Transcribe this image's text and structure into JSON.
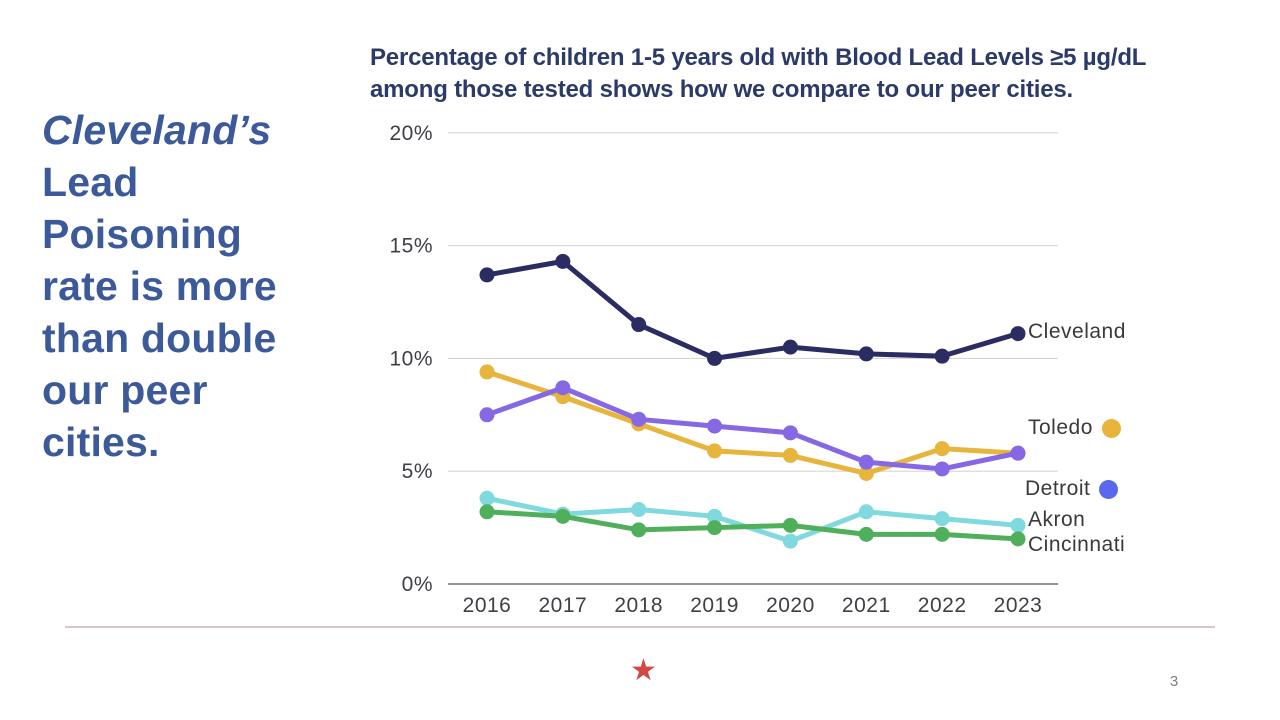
{
  "headline": {
    "emphasis": "Cleveland’s",
    "rest": "Lead Poisoning rate is more than double our peer cities.",
    "lines": [
      "Cleveland’s",
      "Lead",
      "Poisoning",
      "rate is more",
      "than double",
      "our peer",
      "cities."
    ]
  },
  "chart_title": {
    "line1": "Percentage of children 1-5 years old with Blood Lead Levels ≥5 µg/dL",
    "line2": "among those tested shows how we compare to our peer cities."
  },
  "chart_data": {
    "type": "line",
    "title": "Percentage of children 1-5 years old with Blood Lead Levels ≥5 µg/dL among those tested shows how we compare to our peer cities.",
    "categories": [
      "2016",
      "2017",
      "2018",
      "2019",
      "2020",
      "2021",
      "2022",
      "2023"
    ],
    "series": [
      {
        "name": "Cleveland",
        "color": "#2B2D62",
        "values": [
          13.7,
          14.3,
          11.5,
          10.0,
          10.5,
          10.2,
          10.1,
          11.1
        ]
      },
      {
        "name": "Toledo",
        "color": "#E7B43C",
        "legend_dot_color": "#E7B43C",
        "values": [
          9.4,
          8.3,
          7.1,
          5.9,
          5.7,
          4.9,
          6.0,
          5.8
        ]
      },
      {
        "name": "Detroit",
        "color": "#8668E4",
        "legend_dot_color": "#5A68EE",
        "values": [
          7.5,
          8.7,
          7.3,
          7.0,
          6.7,
          5.4,
          5.1,
          5.8
        ]
      },
      {
        "name": "Akron",
        "color": "#7FD9DE",
        "values": [
          3.8,
          3.1,
          3.3,
          3.0,
          1.9,
          3.2,
          2.9,
          2.6
        ]
      },
      {
        "name": "Cincinnati",
        "color": "#4FAF5B",
        "values": [
          3.2,
          3.0,
          2.4,
          2.5,
          2.6,
          2.2,
          2.2,
          2.0
        ]
      }
    ],
    "xlabel": "",
    "ylabel": "",
    "ylim": [
      0,
      20
    ],
    "yticks": [
      0,
      5,
      10,
      15,
      20
    ],
    "ytick_labels": [
      "0%",
      "5%",
      "10%",
      "15%",
      "20%"
    ],
    "grid": true,
    "legend_position": "right-of-lines"
  },
  "footer": {
    "star_glyph": "★",
    "page_number": "3"
  },
  "colors": {
    "headline_blue": "#3C5A99",
    "title_navy": "#2B3A67",
    "axis_text": "#3F4046",
    "legend_text": "#3A3A3A",
    "gridline": "#D6D6D6",
    "axis_line": "#6E6E6E",
    "divider_pink": "#DCC2CA",
    "star_red": "#D04A43",
    "page_gray": "#7F7F7F"
  }
}
